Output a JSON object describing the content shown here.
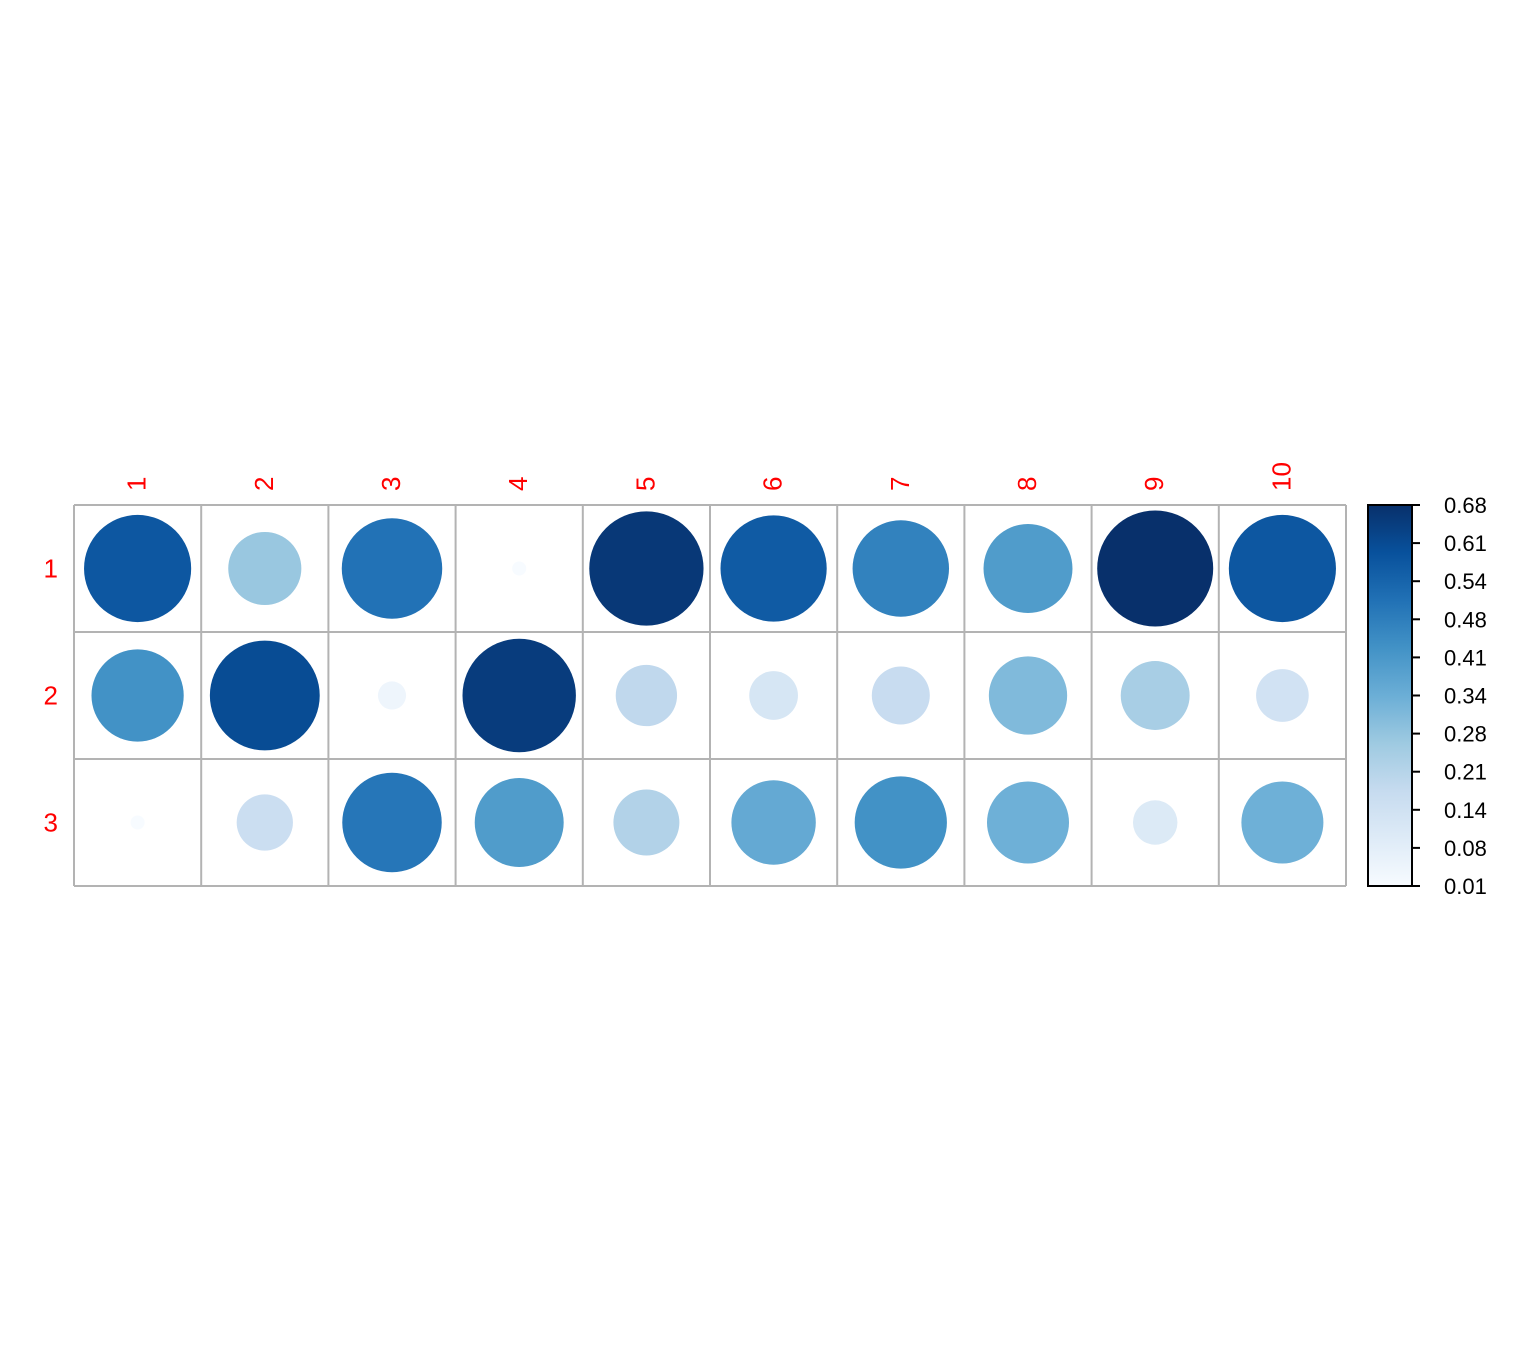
{
  "chart_data": {
    "type": "heatmap",
    "title": "",
    "xlabel": "",
    "ylabel": "",
    "columns": [
      "1",
      "2",
      "3",
      "4",
      "5",
      "6",
      "7",
      "8",
      "9",
      "10"
    ],
    "rows": [
      "1",
      "2",
      "3"
    ],
    "values": [
      [
        0.58,
        0.27,
        0.51,
        0.01,
        0.66,
        0.57,
        0.47,
        0.4,
        0.68,
        0.58
      ],
      [
        0.43,
        0.61,
        0.04,
        0.65,
        0.19,
        0.12,
        0.17,
        0.31,
        0.24,
        0.14
      ],
      [
        0.01,
        0.16,
        0.5,
        0.4,
        0.22,
        0.36,
        0.43,
        0.34,
        0.1,
        0.34
      ]
    ],
    "colorbar": {
      "min": 0.01,
      "max": 0.68,
      "ticks": [
        "0.68",
        "0.61",
        "0.54",
        "0.48",
        "0.41",
        "0.34",
        "0.28",
        "0.21",
        "0.14",
        "0.08",
        "0.01"
      ]
    },
    "colors": {
      "low": "#F7FBFF",
      "high": "#08306B",
      "label": "#FF0000",
      "grid": "#B3B3B3"
    },
    "marker": "circle",
    "legend": "right"
  }
}
